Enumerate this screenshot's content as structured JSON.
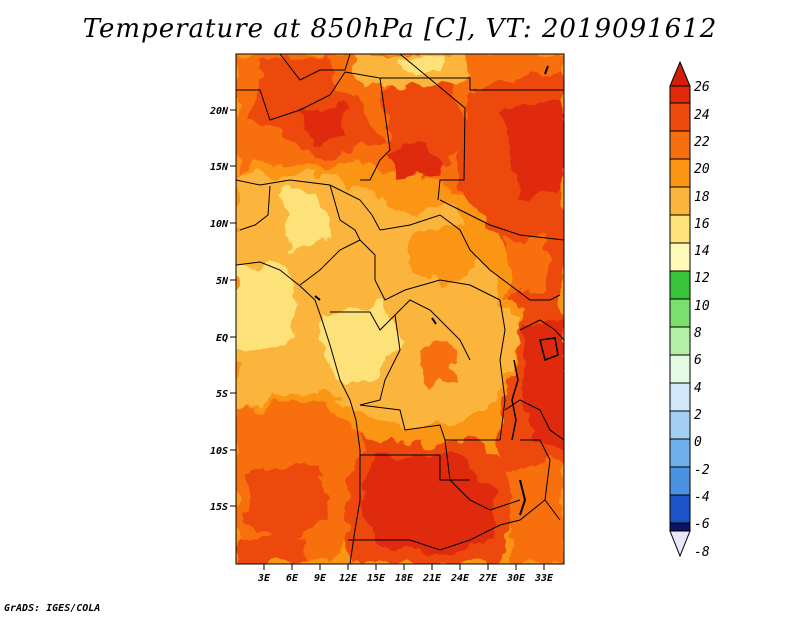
{
  "title": "Temperature at 850hPa [C], VT: 2019091612",
  "credit": "GrADS: IGES/COLA",
  "map": {
    "lon_range": [
      0,
      35
    ],
    "lat_range": [
      -20,
      24.5
    ],
    "lat_ticks": [
      "20N",
      "15N",
      "10N",
      "5N",
      "EQ",
      "5S",
      "10S",
      "15S"
    ],
    "lon_ticks": [
      "3E",
      "6E",
      "9E",
      "12E",
      "15E",
      "18E",
      "21E",
      "24E",
      "27E",
      "30E",
      "33E"
    ]
  },
  "colorbar": {
    "labels": [
      "26",
      "24",
      "22",
      "20",
      "18",
      "16",
      "14",
      "12",
      "10",
      "8",
      "6",
      "4",
      "2",
      "0",
      "-2",
      "-4",
      "-6",
      "-8"
    ],
    "top_color": "#d11e0a",
    "bottom_color": "#e8e8fa",
    "band_colors": [
      "#e02a0a",
      "#ee4a0b",
      "#f76f0e",
      "#fb9514",
      "#fbb53d",
      "#fde27a",
      "#fdf9b6",
      "#37c43b",
      "#79e06e",
      "#b2f0a6",
      "#e2fbe2",
      "#d1e8fa",
      "#a4cff5",
      "#6eb0ee",
      "#4b92e4",
      "#2d75d8",
      "#1a54c6",
      "#0c37a6",
      "#0a1462"
    ]
  }
}
